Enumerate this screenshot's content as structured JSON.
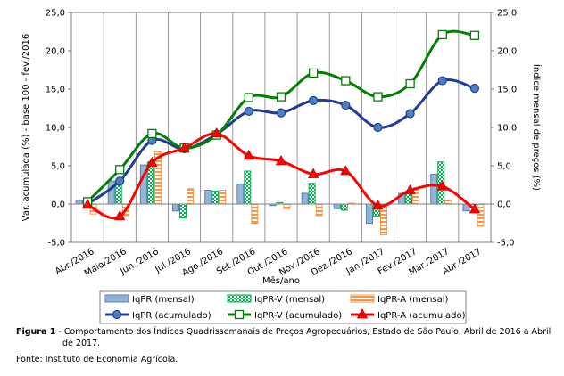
{
  "chart_data": {
    "type": "bar",
    "categories": [
      "Abr./2016",
      "Maio/2016",
      "Jun./2016",
      "Jul./2016",
      "Ago./2016",
      "Set./2016",
      "Out./2016",
      "Nov./2016",
      "Dez./2016",
      "Jan./2017",
      "Fev./2017",
      "Mar./2017",
      "Abr./2017"
    ],
    "xlabel": "Mês/ano",
    "ylabel_left": "Var. acumulada (%) - base 100 - fev./2016",
    "ylabel_right": "Índice mensal de preços (%)",
    "ylim": [
      -5.0,
      25.0
    ],
    "yticks": [
      "-5,0",
      "0,0",
      "5,0",
      "10,0",
      "15,0",
      "20,0",
      "25,0"
    ],
    "bar_series": [
      {
        "name": "IqPR (mensal)",
        "values": [
          0.5,
          3.0,
          5.1,
          -0.9,
          1.8,
          2.6,
          -0.2,
          1.4,
          -0.6,
          -2.5,
          1.4,
          3.9,
          -0.9
        ],
        "color": "#95b3d7",
        "border": "#4f81bd",
        "pattern": "solid"
      },
      {
        "name": "IqPR-V (mensal)",
        "values": [
          0.5,
          3.0,
          5.5,
          -1.8,
          1.7,
          4.3,
          0.2,
          2.7,
          -0.8,
          -1.6,
          1.5,
          5.5,
          0.0
        ],
        "color": "#00b050",
        "border": "#00b050",
        "pattern": "checker"
      },
      {
        "name": "IqPR-A (mensal)",
        "values": [
          -1.3,
          -1.5,
          6.8,
          2.0,
          1.8,
          -2.5,
          -0.6,
          -1.5,
          0.1,
          -4.0,
          2.0,
          0.5,
          -2.9
        ],
        "color": "#fac090",
        "border": "#f79646",
        "pattern": "stripe"
      }
    ],
    "line_series": [
      {
        "name": "IqPR (acumulado)",
        "values": [
          0.0,
          3.0,
          8.3,
          7.2,
          9.1,
          12.1,
          11.9,
          13.5,
          12.9,
          10.0,
          11.8,
          16.1,
          15.1
        ],
        "color": "#1f3c99",
        "marker": "circle"
      },
      {
        "name": "IqPR-V (acumulado)",
        "values": [
          0.3,
          4.5,
          9.2,
          7.3,
          9.0,
          13.9,
          14.0,
          17.1,
          16.1,
          14.0,
          15.7,
          22.1,
          22.0
        ],
        "color": "#008000",
        "marker": "square-open"
      },
      {
        "name": "IqPR-A (acumulado)",
        "values": [
          -0.1,
          -1.6,
          5.4,
          7.3,
          9.2,
          6.3,
          5.6,
          3.9,
          4.3,
          -0.2,
          1.8,
          2.3,
          -0.7
        ],
        "color": "#ff0000",
        "marker": "triangle"
      }
    ],
    "legend_position": "bottom",
    "grid": "vertical"
  },
  "caption": {
    "label": "Figura 1",
    "text": " - Comportamento dos Índices Quadrissemanais de Preços Agropecuários, Estado de São Paulo, Abril de 2016 a Abril",
    "text2": "de 2017."
  },
  "source": "Fonte: Instituto de Economia Agrícola."
}
